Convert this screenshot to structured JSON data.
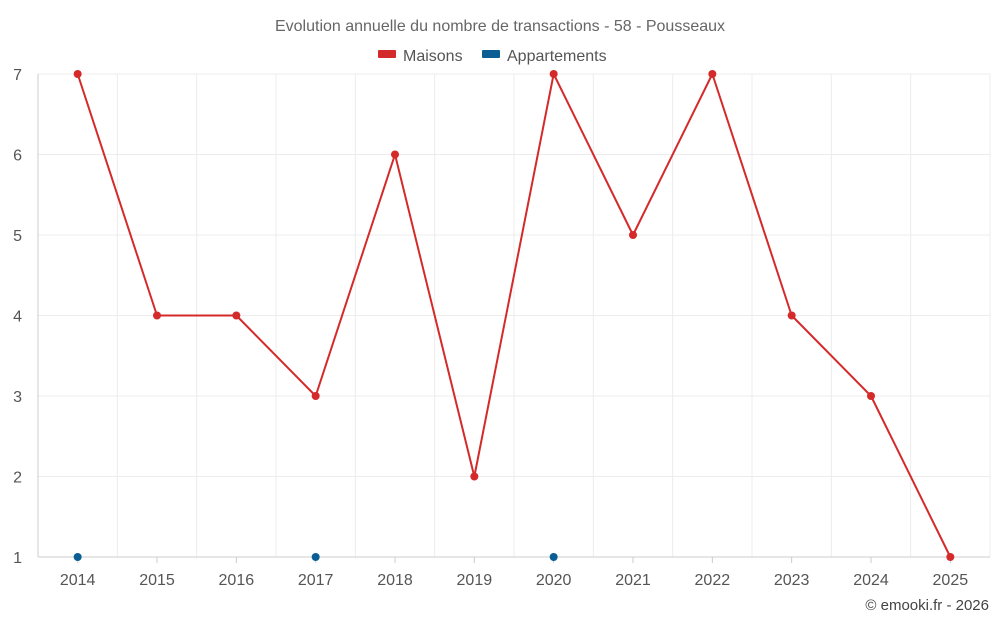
{
  "chart_data": {
    "type": "line",
    "title": "Evolution annuelle du nombre de transactions - 58 - Pousseaux",
    "categories": [
      "2014",
      "2015",
      "2016",
      "2017",
      "2018",
      "2019",
      "2020",
      "2021",
      "2022",
      "2023",
      "2024",
      "2025"
    ],
    "ylim": [
      1,
      7
    ],
    "yticks": [
      "1",
      "2",
      "3",
      "4",
      "5",
      "6",
      "7"
    ],
    "grid": true,
    "legend_position": "top-center",
    "series": [
      {
        "name": "Maisons",
        "color": "#d42a2a",
        "connected": true,
        "values": [
          7,
          4,
          4,
          3,
          6,
          2,
          7,
          5,
          7,
          4,
          3,
          1
        ]
      },
      {
        "name": "Appartements",
        "color": "#0b5e94",
        "connected": false,
        "values": [
          1,
          null,
          null,
          1,
          null,
          null,
          1,
          null,
          null,
          null,
          null,
          null
        ]
      }
    ],
    "credit": "© emooki.fr - 2026"
  }
}
